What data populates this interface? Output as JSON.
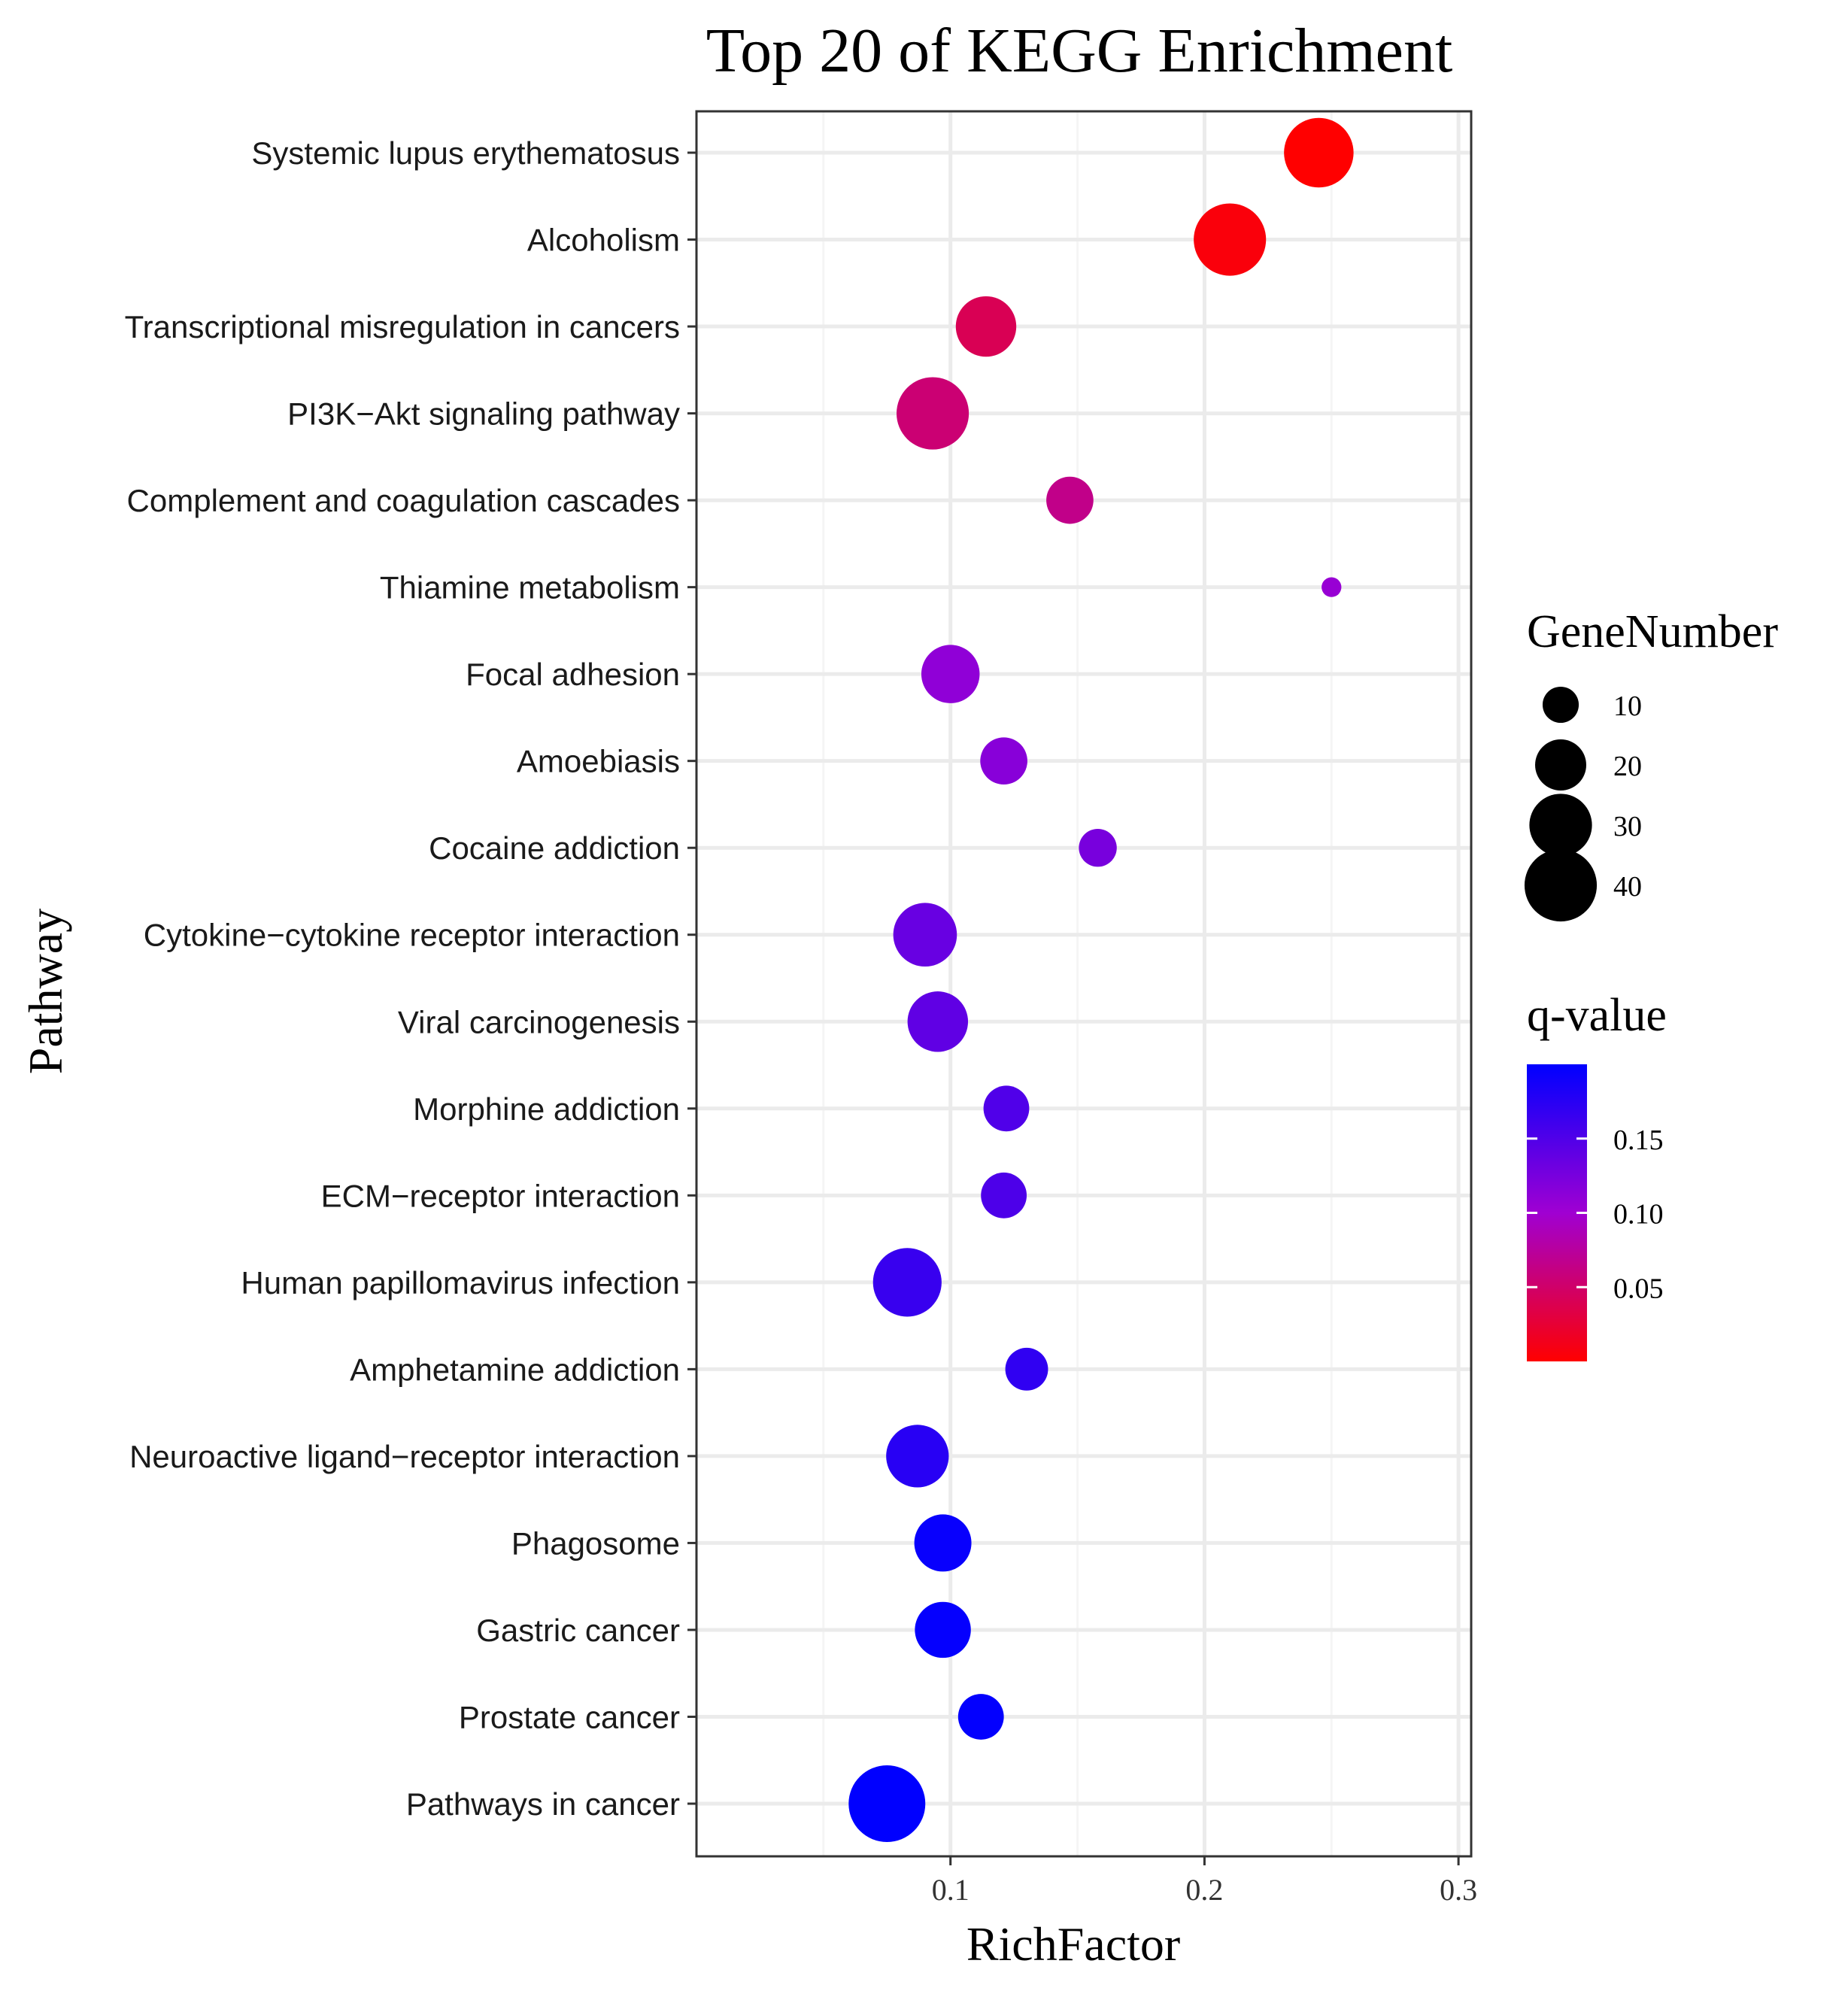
{
  "chart_data": {
    "type": "scatter",
    "title": "Top 20 of KEGG Enrichment",
    "xlabel": "RichFactor",
    "ylabel": "Pathway",
    "xlim": [
      0.0,
      0.305
    ],
    "x_ticks": [
      {
        "value": 0.1,
        "label": "0.1"
      },
      {
        "value": 0.2,
        "label": "0.2"
      },
      {
        "value": 0.3,
        "label": "0.3"
      }
    ],
    "grid": true,
    "points": [
      {
        "pathway": "Systemic lupus erythematosus",
        "rich_factor": 0.245,
        "gene_number": 37,
        "q_value": 0.0
      },
      {
        "pathway": "Alcoholism",
        "rich_factor": 0.21,
        "gene_number": 40,
        "q_value": 0.005
      },
      {
        "pathway": "Transcriptional misregulation in cancers",
        "rich_factor": 0.114,
        "gene_number": 28,
        "q_value": 0.04
      },
      {
        "pathway": "PI3K−Akt signaling pathway",
        "rich_factor": 0.093,
        "gene_number": 40,
        "q_value": 0.055
      },
      {
        "pathway": "Complement and coagulation cascades",
        "rich_factor": 0.147,
        "gene_number": 17,
        "q_value": 0.065
      },
      {
        "pathway": "Thiamine metabolism",
        "rich_factor": 0.25,
        "gene_number": 3,
        "q_value": 0.105
      },
      {
        "pathway": "Focal adhesion",
        "rich_factor": 0.1,
        "gene_number": 26,
        "q_value": 0.11
      },
      {
        "pathway": "Amoebiasis",
        "rich_factor": 0.121,
        "gene_number": 17,
        "q_value": 0.115
      },
      {
        "pathway": "Cocaine addiction",
        "rich_factor": 0.158,
        "gene_number": 11,
        "q_value": 0.125
      },
      {
        "pathway": "Cytokine−cytokine receptor interaction",
        "rich_factor": 0.09,
        "gene_number": 31,
        "q_value": 0.135
      },
      {
        "pathway": "Viral carcinogenesis",
        "rich_factor": 0.095,
        "gene_number": 28,
        "q_value": 0.14
      },
      {
        "pathway": "Morphine addiction",
        "rich_factor": 0.122,
        "gene_number": 16,
        "q_value": 0.15
      },
      {
        "pathway": "ECM−receptor interaction",
        "rich_factor": 0.121,
        "gene_number": 16,
        "q_value": 0.152
      },
      {
        "pathway": "Human papillomavirus infection",
        "rich_factor": 0.083,
        "gene_number": 36,
        "q_value": 0.165
      },
      {
        "pathway": "Amphetamine addiction",
        "rich_factor": 0.13,
        "gene_number": 14,
        "q_value": 0.17
      },
      {
        "pathway": "Neuroactive ligand−receptor interaction",
        "rich_factor": 0.087,
        "gene_number": 30,
        "q_value": 0.175
      },
      {
        "pathway": "Phagosome",
        "rich_factor": 0.097,
        "gene_number": 25,
        "q_value": 0.195
      },
      {
        "pathway": "Gastric cancer",
        "rich_factor": 0.097,
        "gene_number": 24,
        "q_value": 0.197
      },
      {
        "pathway": "Prostate cancer",
        "rich_factor": 0.112,
        "gene_number": 16,
        "q_value": 0.198
      },
      {
        "pathway": "Pathways in cancer",
        "rich_factor": 0.075,
        "gene_number": 45,
        "q_value": 0.2
      }
    ],
    "size_legend": {
      "title": "GeneNumber",
      "entries": [
        {
          "value": 10,
          "label": "10"
        },
        {
          "value": 20,
          "label": "20"
        },
        {
          "value": 30,
          "label": "30"
        },
        {
          "value": 40,
          "label": "40"
        }
      ]
    },
    "color_legend": {
      "title": "q-value",
      "range": [
        0.0,
        0.2
      ],
      "low_color": "#ff0000",
      "mid_color": "#a000d2",
      "high_color": "#0000ff",
      "ticks": [
        {
          "value": 0.15,
          "label": "0.15"
        },
        {
          "value": 0.1,
          "label": "0.10"
        },
        {
          "value": 0.05,
          "label": "0.05"
        }
      ]
    },
    "colors": {
      "grid_major": "#ebebeb",
      "grid_minor": "#f5f5f5",
      "panel_border": "#333333",
      "text": "#000000"
    }
  }
}
